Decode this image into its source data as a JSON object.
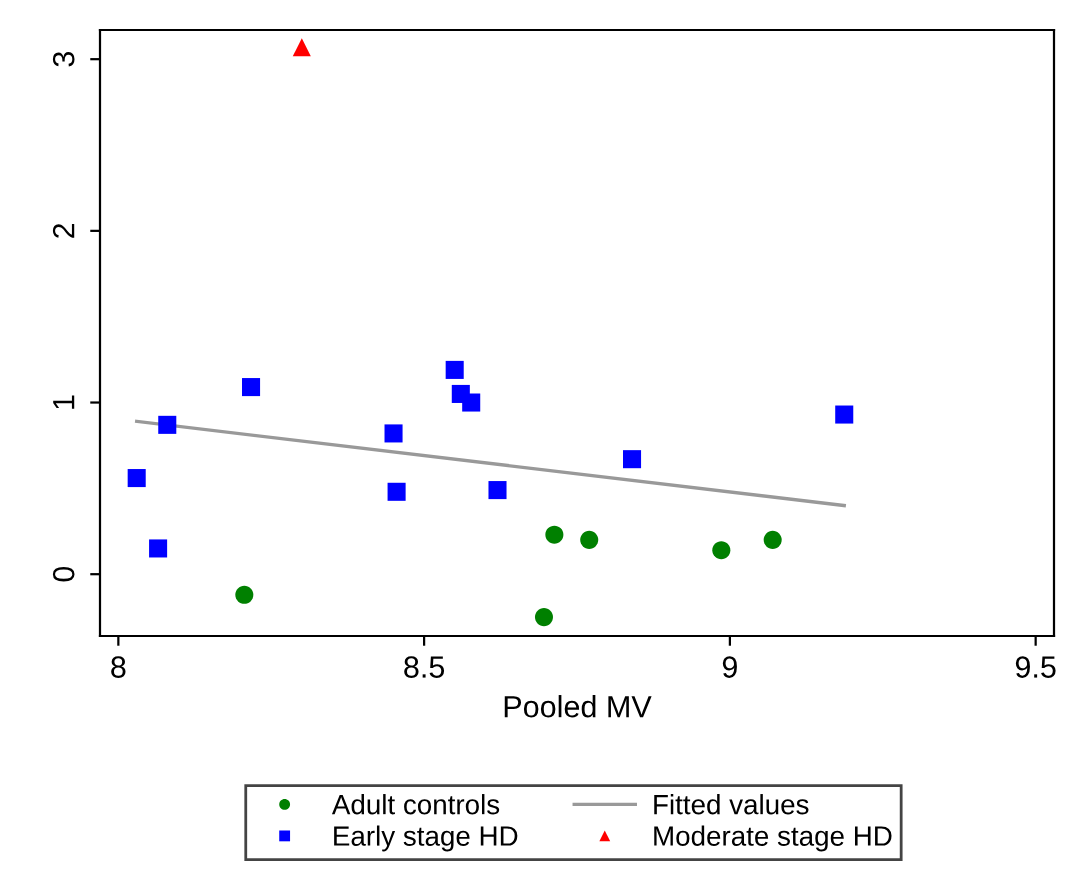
{
  "chart_data": {
    "type": "scatter",
    "xlabel": "Pooled MV",
    "xlim": [
      7.97,
      9.53
    ],
    "xticks": [
      8,
      8.5,
      9,
      9.5
    ],
    "ylim": [
      -0.36,
      3.17
    ],
    "yticks": [
      0,
      1,
      2,
      3
    ],
    "grid": false,
    "legend": "bottom",
    "series": [
      {
        "name": "Adult controls",
        "marker": "circle",
        "color": "#008000",
        "x": [
          8.206,
          8.696,
          8.713,
          8.77,
          8.986,
          9.07
        ],
        "values": [
          -0.12,
          -0.25,
          0.23,
          0.2,
          0.14,
          0.2
        ]
      },
      {
        "name": "Fitted values",
        "type": "line",
        "marker": "none",
        "color": "#999999",
        "x": [
          8.03,
          9.187
        ],
        "values": [
          0.89,
          0.4
        ]
      },
      {
        "name": "Early stage HD",
        "marker": "square",
        "color": "#0000ff",
        "x": [
          8.03,
          8.065,
          8.08,
          8.217,
          8.45,
          8.455,
          8.55,
          8.56,
          8.577,
          8.62,
          8.84,
          9.187
        ],
        "values": [
          0.56,
          0.15,
          0.87,
          1.09,
          0.82,
          0.48,
          1.19,
          1.05,
          1.0,
          0.49,
          0.67,
          0.93
        ]
      },
      {
        "name": "Moderate stage HD",
        "marker": "triangle",
        "color": "#ff0000",
        "x": [
          8.3
        ],
        "values": [
          3.07
        ]
      }
    ]
  }
}
